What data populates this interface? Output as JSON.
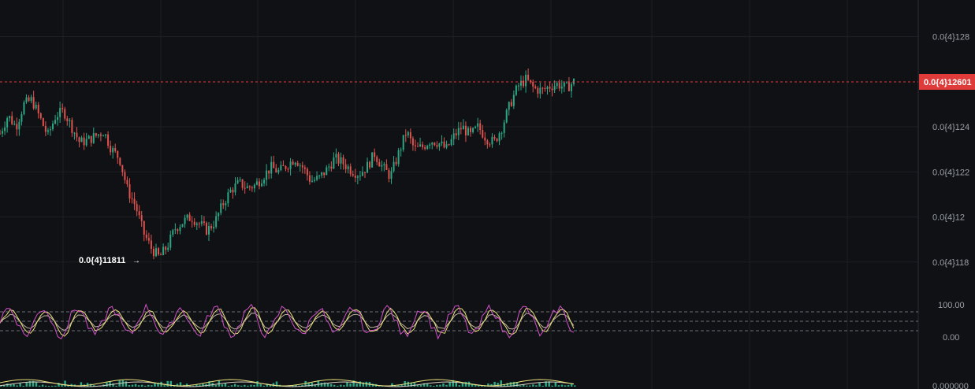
{
  "chart_data": {
    "type": "candlestick",
    "price_axis": {
      "tick_labels": [
        "0.0{4}128",
        "0.0{4}124",
        "0.0{4}122",
        "0.0{4}12",
        "0.0{4}118"
      ],
      "tick_values": [
        1.28e-05,
        1.24e-05,
        1.22e-05,
        1.2e-05,
        1.18e-05
      ],
      "range": [
        1.174e-05,
        1.297e-05
      ]
    },
    "current_price": {
      "label": "0.0{4}12601",
      "value": 1.2601e-05,
      "color": "#e03b3b"
    },
    "low_marker": {
      "label": "0.0{4}11811",
      "value": 1.1811e-05
    },
    "candles_close_path": [
      12.37,
      12.45,
      12.4,
      12.5,
      12.52,
      12.44,
      12.36,
      12.45,
      12.47,
      12.4,
      12.33,
      12.34,
      12.36,
      12.38,
      12.3,
      12.26,
      12.12,
      12.05,
      11.93,
      11.86,
      11.82,
      11.87,
      11.95,
      11.98,
      12.0,
      11.97,
      11.94,
      11.98,
      12.06,
      12.12,
      12.15,
      12.13,
      12.14,
      12.18,
      12.22,
      12.2,
      12.23,
      12.26,
      12.22,
      12.16,
      12.17,
      12.21,
      12.26,
      12.24,
      12.21,
      12.19,
      12.22,
      12.28,
      12.22,
      12.18,
      12.28,
      12.38,
      12.3,
      12.31,
      12.34,
      12.33,
      12.3,
      12.36,
      12.4,
      12.36,
      12.4,
      12.35,
      12.33,
      12.4,
      12.5,
      12.58,
      12.61,
      12.57,
      12.56,
      12.58,
      12.59,
      12.57,
      12.6
    ],
    "stoch_rsi": {
      "axis_labels": [
        "100.00",
        "0.00"
      ],
      "levels": [
        80,
        50,
        20
      ],
      "colors": {
        "k": "#d152c8",
        "d": "#e8e07a",
        "rsi": "#c3b4a0"
      }
    },
    "macd": {
      "axis_label": "0.000000",
      "colors": {
        "hist": "#2aa886",
        "macd": "#e8e07a",
        "signal": "#d8d0c0"
      }
    },
    "colors": {
      "up": "#2aa886",
      "down": "#e0524e",
      "background": "#101114",
      "grid": "#1d1f24"
    }
  }
}
